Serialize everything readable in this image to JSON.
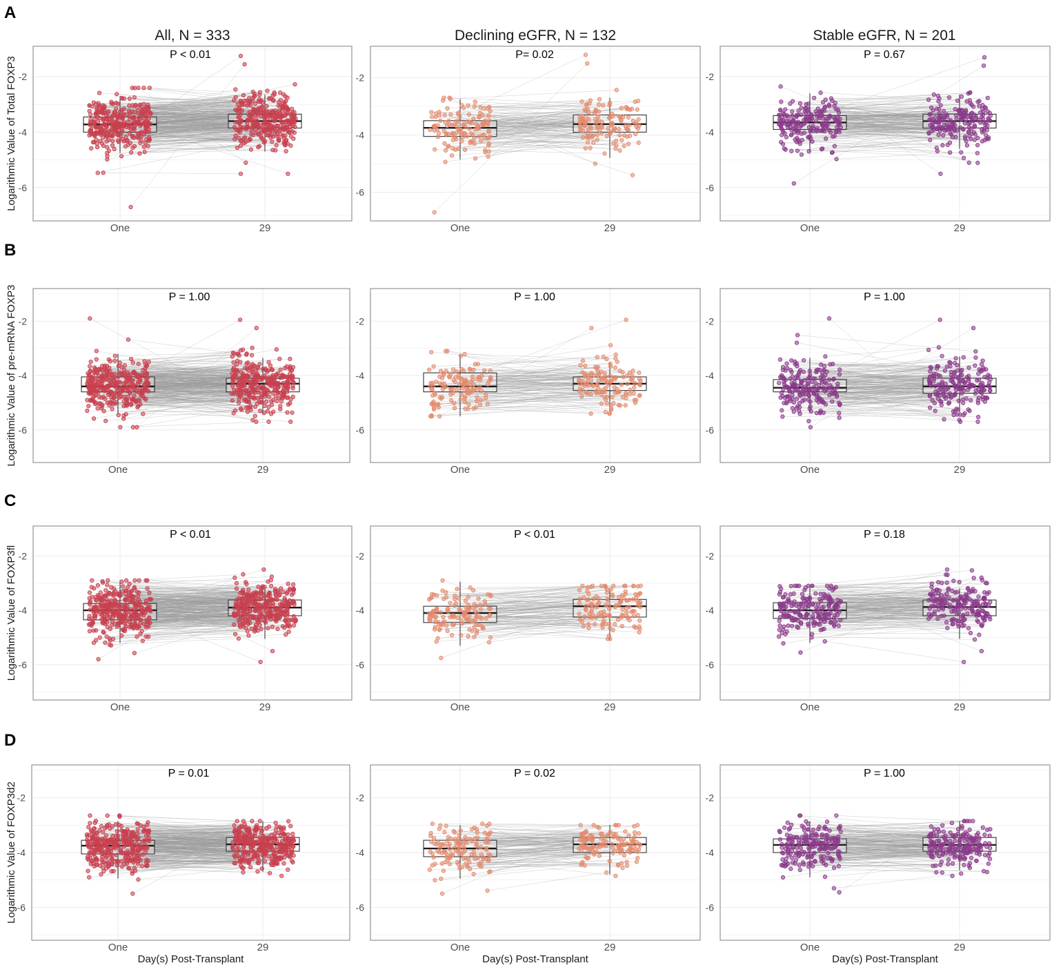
{
  "figure": {
    "column_titles": [
      "All, N = 333",
      "Declining eGFR, N = 132",
      "Stable eGFR, N = 201"
    ],
    "x_axis_title": "Day(s) Post-Transplant",
    "colors": {
      "all": "#c8404f",
      "declining": "#e38a6d",
      "stable": "#8b3a8a",
      "panel_border": "#7f7f7f",
      "grid": "#ebebeb",
      "line": "#9a9a9a"
    }
  },
  "chart_data": [
    {
      "panel": "A",
      "type": "box",
      "ylabel": "Logarithmic Value of Total FOXP3",
      "facets": [
        {
          "title": "All, N = 333",
          "pvalue": "P < 0.01",
          "categories": [
            "One",
            "29"
          ],
          "ylim": [
            -7.2,
            -0.9
          ],
          "yticks": [
            -2,
            -4,
            -6
          ],
          "boxes": [
            {
              "q1": -4.0,
              "median": -3.72,
              "q3": -3.45,
              "lo": -4.75,
              "hi": -2.7
            },
            {
              "q1": -3.85,
              "median": -3.6,
              "q3": -3.35,
              "lo": -4.7,
              "hi": -2.65
            }
          ],
          "scatter": {
            "n": 333,
            "sd1": 0.5,
            "sd2": 0.48,
            "min1": -6.7,
            "max1": -2.4,
            "min2": -5.5,
            "max2": -1.25
          }
        },
        {
          "title": "Declining eGFR, N = 132",
          "pvalue": "P= 0.02",
          "categories": [
            "One",
            "29"
          ],
          "ylim": [
            -7.0,
            -0.9
          ],
          "yticks": [
            -2,
            -4,
            -6
          ],
          "boxes": [
            {
              "q1": -4.05,
              "median": -3.75,
              "q3": -3.5,
              "lo": -4.85,
              "hi": -2.75
            },
            {
              "q1": -3.9,
              "median": -3.62,
              "q3": -3.3,
              "lo": -4.8,
              "hi": -2.7
            }
          ],
          "scatter": {
            "n": 132,
            "sd1": 0.55,
            "sd2": 0.5,
            "min1": -6.7,
            "max1": -2.7,
            "min2": -5.4,
            "max2": -1.2
          }
        },
        {
          "title": "Stable eGFR, N = 201",
          "pvalue": "P = 0.67",
          "categories": [
            "One",
            "29"
          ],
          "ylim": [
            -7.2,
            -0.9
          ],
          "yticks": [
            -2,
            -4,
            -6
          ],
          "boxes": [
            {
              "q1": -3.9,
              "median": -3.65,
              "q3": -3.4,
              "lo": -4.7,
              "hi": -2.6
            },
            {
              "q1": -3.85,
              "median": -3.6,
              "q3": -3.35,
              "lo": -4.6,
              "hi": -2.65
            }
          ],
          "scatter": {
            "n": 201,
            "sd1": 0.45,
            "sd2": 0.45,
            "min1": -5.85,
            "max1": -2.35,
            "min2": -5.5,
            "max2": -1.3
          }
        }
      ]
    },
    {
      "panel": "B",
      "type": "box",
      "ylabel": "Logarithmic Value of pre-mRNA FOXP3",
      "facets": [
        {
          "title": "",
          "pvalue": "P = 1.00",
          "categories": [
            "One",
            "29"
          ],
          "ylim": [
            -7.2,
            -0.8
          ],
          "yticks": [
            -2,
            -4,
            -6
          ],
          "boxes": [
            {
              "q1": -4.6,
              "median": -4.4,
              "q3": -4.05,
              "lo": -5.4,
              "hi": -3.2
            },
            {
              "q1": -4.6,
              "median": -4.3,
              "q3": -4.1,
              "lo": -5.4,
              "hi": -3.35
            }
          ],
          "scatter": {
            "n": 333,
            "sd1": 0.5,
            "sd2": 0.5,
            "min1": -5.9,
            "max1": -1.9,
            "min2": -5.7,
            "max2": -1.95
          }
        },
        {
          "title": "",
          "pvalue": "P = 1.00",
          "categories": [
            "One",
            "29"
          ],
          "ylim": [
            -7.2,
            -0.8
          ],
          "yticks": [
            -2,
            -4,
            -6
          ],
          "boxes": [
            {
              "q1": -4.6,
              "median": -4.4,
              "q3": -3.9,
              "lo": -5.5,
              "hi": -3.2
            },
            {
              "q1": -4.55,
              "median": -4.3,
              "q3": -4.05,
              "lo": -5.35,
              "hi": -3.5
            }
          ],
          "scatter": {
            "n": 132,
            "sd1": 0.5,
            "sd2": 0.5,
            "min1": -5.5,
            "max1": -3.1,
            "min2": -5.4,
            "max2": -1.95
          }
        },
        {
          "title": "",
          "pvalue": "P = 1.00",
          "categories": [
            "One",
            "29"
          ],
          "ylim": [
            -7.2,
            -0.8
          ],
          "yticks": [
            -2,
            -4,
            -6
          ],
          "boxes": [
            {
              "q1": -4.6,
              "median": -4.45,
              "q3": -4.15,
              "lo": -5.35,
              "hi": -3.35
            },
            {
              "q1": -4.65,
              "median": -4.4,
              "q3": -4.1,
              "lo": -5.35,
              "hi": -3.3
            }
          ],
          "scatter": {
            "n": 201,
            "sd1": 0.5,
            "sd2": 0.5,
            "min1": -5.9,
            "max1": -1.9,
            "min2": -5.7,
            "max2": -1.95
          }
        }
      ]
    },
    {
      "panel": "C",
      "type": "box",
      "ylabel": "Logarithmic Value of FOXP3fl",
      "facets": [
        {
          "title": "",
          "pvalue": "P < 0.01",
          "categories": [
            "One",
            "29"
          ],
          "ylim": [
            -7.3,
            -0.9
          ],
          "yticks": [
            -2,
            -4,
            -6
          ],
          "boxes": [
            {
              "q1": -4.35,
              "median": -4.0,
              "q3": -3.75,
              "lo": -5.2,
              "hi": -2.95
            },
            {
              "q1": -4.2,
              "median": -3.9,
              "q3": -3.62,
              "lo": -5.05,
              "hi": -3.2
            }
          ],
          "scatter": {
            "n": 333,
            "sd1": 0.5,
            "sd2": 0.45,
            "min1": -5.8,
            "max1": -2.9,
            "min2": -5.9,
            "max2": -2.5
          }
        },
        {
          "title": "",
          "pvalue": "P < 0.01",
          "categories": [
            "One",
            "29"
          ],
          "ylim": [
            -7.3,
            -0.9
          ],
          "yticks": [
            -2,
            -4,
            -6
          ],
          "boxes": [
            {
              "q1": -4.45,
              "median": -4.1,
              "q3": -3.85,
              "lo": -5.3,
              "hi": -2.95
            },
            {
              "q1": -4.25,
              "median": -3.85,
              "q3": -3.6,
              "lo": -5.1,
              "hi": -3.25
            }
          ],
          "scatter": {
            "n": 132,
            "sd1": 0.5,
            "sd2": 0.45,
            "min1": -5.75,
            "max1": -2.9,
            "min2": -5.05,
            "max2": -3.1
          }
        },
        {
          "title": "",
          "pvalue": "P = 0.18",
          "categories": [
            "One",
            "29"
          ],
          "ylim": [
            -7.3,
            -0.9
          ],
          "yticks": [
            -2,
            -4,
            -6
          ],
          "boxes": [
            {
              "q1": -4.3,
              "median": -4.0,
              "q3": -3.72,
              "lo": -5.2,
              "hi": -3.15
            },
            {
              "q1": -4.2,
              "median": -3.88,
              "q3": -3.62,
              "lo": -5.05,
              "hi": -3.2
            }
          ],
          "scatter": {
            "n": 201,
            "sd1": 0.45,
            "sd2": 0.45,
            "min1": -5.55,
            "max1": -3.1,
            "min2": -5.9,
            "max2": -2.5
          }
        }
      ]
    },
    {
      "panel": "D",
      "type": "box",
      "ylabel": "Logarithmic Value of FOXP3d2",
      "facets": [
        {
          "title": "",
          "pvalue": "P = 0.01",
          "categories": [
            "One",
            "29"
          ],
          "ylim": [
            -7.2,
            -0.8
          ],
          "yticks": [
            -2,
            -4,
            -6
          ],
          "boxes": [
            {
              "q1": -4.05,
              "median": -3.75,
              "q3": -3.55,
              "lo": -4.95,
              "hi": -2.85
            },
            {
              "q1": -3.95,
              "median": -3.7,
              "q3": -3.45,
              "lo": -4.7,
              "hi": -2.85
            }
          ],
          "scatter": {
            "n": 333,
            "sd1": 0.45,
            "sd2": 0.4,
            "min1": -5.5,
            "max1": -2.65,
            "min2": -4.85,
            "max2": -2.85
          }
        },
        {
          "title": "",
          "pvalue": "P = 0.02",
          "categories": [
            "One",
            "29"
          ],
          "ylim": [
            -7.2,
            -0.8
          ],
          "yticks": [
            -2,
            -4,
            -6
          ],
          "boxes": [
            {
              "q1": -4.15,
              "median": -3.85,
              "q3": -3.55,
              "lo": -4.95,
              "hi": -3.0
            },
            {
              "q1": -4.0,
              "median": -3.7,
              "q3": -3.45,
              "lo": -4.8,
              "hi": -3.0
            }
          ],
          "scatter": {
            "n": 132,
            "sd1": 0.45,
            "sd2": 0.4,
            "min1": -5.5,
            "max1": -2.95,
            "min2": -4.85,
            "max2": -3.0
          }
        },
        {
          "title": "",
          "pvalue": "P = 1.00",
          "categories": [
            "One",
            "29"
          ],
          "ylim": [
            -7.2,
            -0.8
          ],
          "yticks": [
            -2,
            -4,
            -6
          ],
          "boxes": [
            {
              "q1": -4.0,
              "median": -3.72,
              "q3": -3.5,
              "lo": -4.9,
              "hi": -2.85
            },
            {
              "q1": -3.95,
              "median": -3.72,
              "q3": -3.45,
              "lo": -4.65,
              "hi": -2.85
            }
          ],
          "scatter": {
            "n": 201,
            "sd1": 0.45,
            "sd2": 0.4,
            "min1": -5.45,
            "max1": -2.65,
            "min2": -4.85,
            "max2": -2.85
          }
        }
      ]
    }
  ]
}
